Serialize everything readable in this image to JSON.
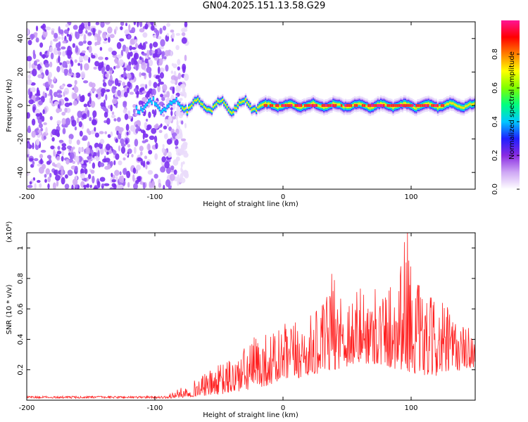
{
  "title": "GN04.2025.151.13.58.G29",
  "chart_data": [
    {
      "type": "heatmap",
      "xlabel": "Height of straight line (km)",
      "ylabel": "Frequency (Hz)",
      "xlim": [
        -200,
        150
      ],
      "ylim": [
        -50,
        50
      ],
      "x_ticks": [
        -200,
        -100,
        0,
        100
      ],
      "y_ticks": [
        -40,
        -20,
        0,
        20,
        40
      ],
      "colorbar": {
        "label": "Normalized spectral amplitude",
        "range": [
          0.0,
          1.0
        ],
        "ticks": [
          0.0,
          0.2,
          0.4,
          0.6,
          0.8
        ],
        "tick_labels": [
          "0.0",
          "0.2",
          "0.4",
          "0.6",
          "0.8"
        ],
        "colors": [
          "#ffffff",
          "#cfa8f5",
          "#8a2be2",
          "#1f1fff",
          "#00c8ff",
          "#00ff80",
          "#80ff00",
          "#ffff00",
          "#ff8000",
          "#ff0000",
          "#ff1493"
        ]
      },
      "features": {
        "noise_region_x": [
          -200,
          -75
        ],
        "ridge_frequency_hz": 0,
        "ridge_start_x": -115,
        "peak_amplitude_x_range": [
          -15,
          125
        ],
        "grid": false
      }
    },
    {
      "type": "line",
      "xlabel": "Height of straight line (km)",
      "ylabel": "SNR (10 * v/v)",
      "y_multiplier": "(x10⁴)",
      "xlim": [
        -200,
        150
      ],
      "ylim": [
        0,
        1.1
      ],
      "x_ticks": [
        -200,
        -100,
        0,
        100
      ],
      "y_ticks": [
        0.2,
        0.4,
        0.6,
        0.8,
        1.0
      ],
      "y_tick_labels": [
        "0.2",
        "0.4",
        "0.6",
        "0.8",
        "1"
      ],
      "series_color": "#ff2020",
      "grid": false,
      "envelope": {
        "x": [
          -200,
          -120,
          -90,
          -75,
          -60,
          -45,
          -30,
          -20,
          -10,
          0,
          10,
          20,
          30,
          40,
          50,
          60,
          70,
          80,
          90,
          95,
          100,
          110,
          120,
          130,
          140,
          150
        ],
        "baseline": [
          0.01,
          0.01,
          0.01,
          0.02,
          0.03,
          0.04,
          0.06,
          0.08,
          0.1,
          0.12,
          0.14,
          0.16,
          0.18,
          0.2,
          0.22,
          0.24,
          0.24,
          0.22,
          0.2,
          0.2,
          0.18,
          0.16,
          0.16,
          0.18,
          0.2,
          0.22
        ],
        "peak": [
          0.03,
          0.03,
          0.04,
          0.1,
          0.18,
          0.26,
          0.35,
          0.45,
          0.45,
          0.5,
          0.52,
          0.55,
          0.62,
          0.8,
          0.72,
          0.75,
          0.7,
          0.75,
          0.9,
          1.1,
          0.95,
          0.65,
          0.7,
          0.6,
          0.5,
          0.48
        ]
      },
      "notable_peaks": [
        {
          "x": 38,
          "y": 0.83
        },
        {
          "x": 72,
          "y": 0.73
        },
        {
          "x": 97,
          "y": 1.1
        },
        {
          "x": 92,
          "y": 0.88
        }
      ]
    }
  ]
}
